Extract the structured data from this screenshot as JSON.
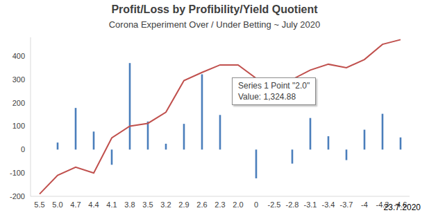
{
  "chart_data": {
    "type": "bar",
    "title": "Profit/Loss by Profibility/Yield Quotient",
    "subtitle": "Corona Experiment Over / Under Betting ~ July 2020",
    "categories": [
      "5.5",
      "5.0",
      "4.7",
      "4.4",
      "4.1",
      "3.8",
      "3.5",
      "3.2",
      "2.9",
      "2.6",
      "2.3",
      "2.0",
      "0",
      "-2.5",
      "-2.8",
      "-3.1",
      "-3.4",
      "-3.7",
      "-4",
      "-4.3",
      "-4.6"
    ],
    "series": [
      {
        "type": "bar",
        "color": "#4a7ebb",
        "values": [
          0,
          30,
          178,
          77,
          -65,
          370,
          120,
          25,
          110,
          322,
          148,
          0,
          -123,
          0,
          -60,
          135,
          57,
          -45,
          85,
          153,
          52
        ]
      },
      {
        "type": "line",
        "color": "#c0504d",
        "values": [
          -190,
          -110,
          -75,
          -100,
          50,
          100,
          112,
          160,
          295,
          330,
          362,
          362,
          305,
          295,
          300,
          340,
          365,
          350,
          385,
          450,
          470
        ]
      }
    ],
    "ylim": [
      -200,
      480
    ],
    "yticks": [
      -200,
      -100,
      0,
      100,
      200,
      300,
      400
    ],
    "grid": false,
    "annotations": [
      "Series 1 Point \"2.0\"",
      "Value: 1,324.88",
      "23.7.2020"
    ]
  }
}
